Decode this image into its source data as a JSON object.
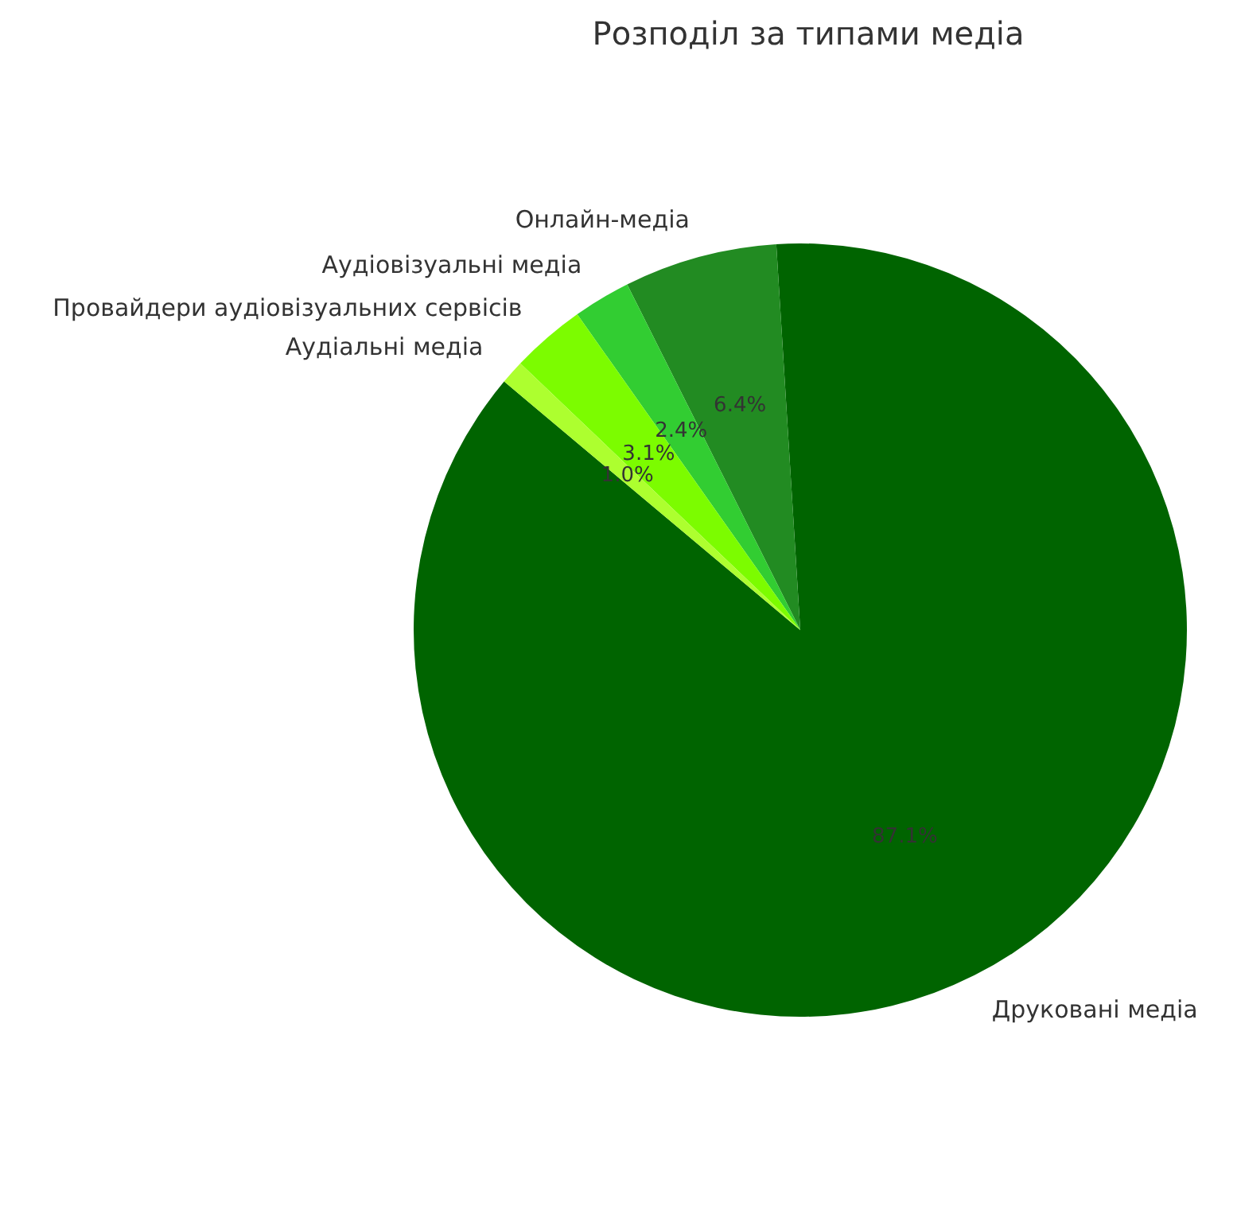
{
  "chart_data": {
    "type": "pie",
    "title": "Розподіл за типами медіа",
    "categories": [
      "Друковані медіа",
      "Онлайн-медіа",
      "Аудіовізуальні медіа",
      "Провайдери аудіовізуальних сервісів",
      "Аудіальні медіа"
    ],
    "values": [
      87.1,
      6.4,
      2.4,
      3.1,
      1.0
    ],
    "colors": [
      "#006400",
      "#228b22",
      "#32cd32",
      "#7cfc00",
      "#adff2f"
    ],
    "value_labels": [
      "87.1%",
      "6.4%",
      "2.4%",
      "3.1%",
      "1.0%"
    ]
  }
}
